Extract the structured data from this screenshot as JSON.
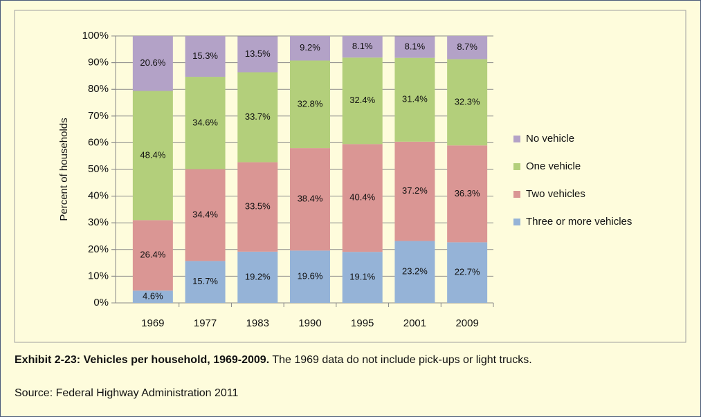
{
  "chart_data": {
    "type": "bar",
    "stacked": true,
    "ylabel": "Percent of households",
    "categories": [
      "1969",
      "1977",
      "1983",
      "1990",
      "1995",
      "2001",
      "2009"
    ],
    "series": [
      {
        "name": "Three or more vehicles",
        "color": "#95b3d7",
        "values": [
          4.6,
          15.7,
          19.2,
          19.6,
          19.1,
          23.2,
          22.7
        ],
        "value_labels": [
          "4.6%",
          "15.7%",
          "19.2%",
          "19.6%",
          "19.1%",
          "23.2%",
          "22.7%"
        ]
      },
      {
        "name": "Two vehicles",
        "color": "#da9694",
        "values": [
          26.4,
          34.4,
          33.5,
          38.4,
          40.4,
          37.2,
          36.3
        ],
        "value_labels": [
          "26.4%",
          "34.4%",
          "33.5%",
          "38.4%",
          "40.4%",
          "37.2%",
          "36.3%"
        ]
      },
      {
        "name": "One vehicle",
        "color": "#b3cf7b",
        "values": [
          48.4,
          34.6,
          33.7,
          32.8,
          32.4,
          31.4,
          32.3
        ],
        "value_labels": [
          "48.4%",
          "34.6%",
          "33.7%",
          "32.8%",
          "32.4%",
          "31.4%",
          "32.3%"
        ]
      },
      {
        "name": "No vehicle",
        "color": "#b3a2c7",
        "values": [
          20.6,
          15.3,
          13.5,
          9.2,
          8.1,
          8.1,
          8.7
        ],
        "value_labels": [
          "20.6%",
          "15.3%",
          "13.5%",
          "9.2%",
          "8.1%",
          "8.1%",
          "8.7%"
        ]
      }
    ],
    "ylim": [
      0,
      100
    ],
    "yticks": [
      {
        "value": 0,
        "label": "0%"
      },
      {
        "value": 10,
        "label": "10%"
      },
      {
        "value": 20,
        "label": "20%"
      },
      {
        "value": 30,
        "label": "30%"
      },
      {
        "value": 40,
        "label": "40%"
      },
      {
        "value": 50,
        "label": "50%"
      },
      {
        "value": 60,
        "label": "60%"
      },
      {
        "value": 70,
        "label": "70%"
      },
      {
        "value": 80,
        "label": "80%"
      },
      {
        "value": 90,
        "label": "90%"
      },
      {
        "value": 100,
        "label": "100%"
      }
    ],
    "grid": true,
    "legend": "right"
  },
  "caption": {
    "bold": "Exhibit 2-23: Vehicles per household, 1969-2009.",
    "text": " The 1969 data do not include pick-ups or light trucks.",
    "source": "Source: Federal Highway Administration 2011"
  }
}
